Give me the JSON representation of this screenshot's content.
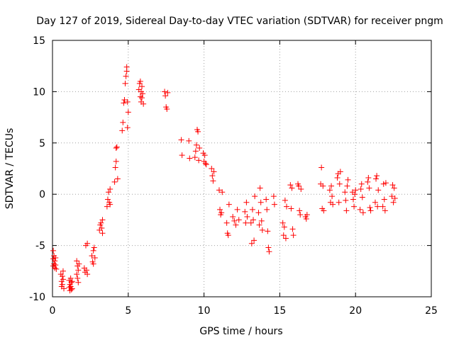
{
  "chart_data": {
    "type": "scatter",
    "title": "Day 127 of 2019, Sidereal Day-to-day VTEC variation (SDTVAR) for receiver pngm",
    "xlabel": "GPS time / hours",
    "ylabel": "SDTVAR / TECUs",
    "xlim": [
      0,
      25
    ],
    "ylim": [
      -10,
      15
    ],
    "xticks": [
      0,
      5,
      10,
      15,
      20,
      25
    ],
    "yticks": [
      -10,
      -5,
      0,
      5,
      10,
      15
    ],
    "xtick_labels": [
      "0",
      "5",
      "10",
      "15",
      "20",
      "25"
    ],
    "ytick_labels": [
      "-10",
      "-5",
      "0",
      "5",
      "10",
      "15"
    ],
    "grid": true,
    "marker": "+",
    "color": "#ff0000",
    "series": [
      {
        "name": "SDTVAR",
        "x": [
          0.05,
          0.05,
          0.05,
          0.1,
          0.1,
          0.15,
          0.15,
          0.2,
          0.2,
          0.25,
          0.55,
          0.6,
          0.6,
          0.65,
          0.65,
          0.7,
          0.7,
          0.75,
          1.1,
          1.1,
          1.15,
          1.15,
          1.2,
          1.2,
          1.25,
          1.25,
          1.3,
          1.3,
          1.6,
          1.6,
          1.65,
          1.65,
          1.7,
          1.7,
          1.75,
          2.1,
          2.15,
          2.2,
          2.25,
          2.3,
          2.3,
          2.6,
          2.65,
          2.7,
          2.7,
          2.75,
          2.8,
          3.1,
          3.15,
          3.2,
          3.25,
          3.3,
          3.3,
          3.6,
          3.65,
          3.7,
          3.75,
          3.8,
          3.8,
          4.1,
          4.15,
          4.2,
          4.2,
          4.25,
          4.3,
          4.6,
          4.65,
          4.7,
          4.75,
          4.8,
          4.85,
          4.9,
          4.9,
          4.95,
          4.95,
          5.0,
          5.7,
          5.75,
          5.8,
          5.85,
          5.9,
          5.95,
          6.0,
          5.8,
          5.85,
          5.9,
          7.4,
          7.45,
          7.5,
          7.55,
          7.6,
          8.5,
          8.55,
          9.0,
          9.05,
          9.4,
          9.45,
          9.5,
          9.55,
          9.6,
          9.65,
          9.7,
          9.95,
          10.0,
          10.05,
          10.1,
          10.15,
          10.5,
          10.55,
          10.6,
          10.65,
          11.0,
          11.05,
          11.1,
          11.15,
          11.2,
          11.5,
          11.55,
          11.6,
          11.65,
          11.9,
          12.0,
          12.1,
          12.2,
          12.3,
          12.7,
          12.75,
          12.8,
          12.85,
          13.2,
          13.25,
          13.3,
          13.35,
          13.1,
          13.15,
          13.6,
          13.65,
          13.7,
          13.75,
          13.8,
          13.85,
          14.1,
          14.15,
          14.2,
          14.25,
          14.3,
          14.6,
          14.65,
          15.2,
          15.25,
          15.3,
          15.35,
          15.4,
          15.45,
          15.7,
          15.75,
          15.8,
          15.85,
          15.9,
          16.2,
          16.25,
          16.3,
          16.35,
          16.4,
          16.7,
          16.75,
          16.8,
          17.7,
          17.75,
          17.8,
          17.85,
          17.9,
          18.3,
          18.35,
          18.4,
          18.45,
          18.5,
          18.8,
          18.85,
          18.9,
          18.95,
          19.0,
          19.3,
          19.35,
          19.4,
          19.45,
          19.5,
          19.8,
          19.85,
          19.9,
          19.95,
          20.0,
          20.3,
          20.35,
          20.4,
          20.45,
          20.5,
          20.8,
          20.85,
          20.9,
          20.95,
          21.0,
          21.3,
          21.35,
          21.4,
          21.45,
          21.5,
          21.8,
          21.85,
          21.9,
          21.95,
          22.0,
          22.4,
          22.45,
          22.5,
          22.55,
          22.6
        ],
        "y": [
          -5.5,
          -6.3,
          -7.0,
          -6.0,
          -6.8,
          -6.5,
          -7.2,
          -6.2,
          -6.9,
          -7.3,
          -7.8,
          -8.5,
          -9.0,
          -8.0,
          -8.8,
          -7.5,
          -8.3,
          -9.2,
          -8.4,
          -9.1,
          -8.8,
          -9.4,
          -8.2,
          -9.0,
          -8.6,
          -9.3,
          -8.5,
          -9.2,
          -6.5,
          -7.8,
          -7.0,
          -8.2,
          -7.4,
          -8.6,
          -6.8,
          -7.2,
          -7.6,
          -5.0,
          -7.4,
          -4.8,
          -7.8,
          -6.0,
          -6.6,
          -5.5,
          -6.8,
          -5.2,
          -6.2,
          -3.5,
          -3.0,
          -2.8,
          -3.3,
          -2.5,
          -3.8,
          -1.2,
          -0.5,
          0.2,
          -0.8,
          0.5,
          -1.0,
          1.2,
          2.6,
          3.2,
          4.5,
          4.6,
          1.5,
          6.2,
          7.0,
          8.9,
          9.2,
          10.8,
          11.5,
          12.0,
          12.4,
          9.0,
          6.5,
          8.0,
          10.2,
          10.8,
          9.5,
          9.0,
          10.5,
          9.8,
          8.8,
          11.0,
          10.0,
          9.4,
          10.0,
          9.6,
          8.5,
          8.3,
          9.9,
          5.3,
          3.8,
          5.2,
          3.5,
          3.6,
          4.2,
          4.8,
          6.3,
          6.1,
          3.3,
          4.5,
          4.0,
          3.2,
          3.8,
          3.0,
          2.9,
          2.5,
          1.8,
          1.3,
          2.2,
          0.4,
          -1.5,
          -2.0,
          -1.8,
          0.2,
          -2.8,
          -3.8,
          -4.0,
          -1.0,
          -2.2,
          -2.6,
          -3.0,
          -1.5,
          -2.5,
          -1.7,
          -2.8,
          -0.8,
          -2.2,
          -1.5,
          -2.5,
          -4.5,
          -0.2,
          -2.8,
          -4.8,
          -1.8,
          -3.0,
          0.6,
          -0.8,
          -2.6,
          -3.5,
          -0.5,
          -1.5,
          -3.6,
          -5.2,
          -5.6,
          -0.2,
          -1.0,
          -2.8,
          -4.0,
          -3.2,
          -0.6,
          -4.3,
          -1.2,
          0.9,
          -1.4,
          0.6,
          -3.4,
          -4.0,
          1.0,
          0.8,
          -1.6,
          -2.0,
          0.5,
          -2.2,
          -2.4,
          -2.0,
          1.0,
          2.6,
          -1.4,
          0.8,
          -1.6,
          0.4,
          -0.8,
          0.8,
          -0.2,
          -1.0,
          1.6,
          2.0,
          -0.8,
          1.0,
          2.2,
          0.2,
          -0.6,
          -1.6,
          0.8,
          1.4,
          0.2,
          -0.5,
          -1.2,
          0.0,
          0.4,
          -1.5,
          0.5,
          1.0,
          -0.3,
          -1.8,
          1.2,
          1.6,
          0.6,
          -1.3,
          -1.6,
          -0.8,
          1.5,
          1.8,
          -1.2,
          0.4,
          -1.2,
          1.0,
          -0.5,
          -1.6,
          1.1,
          -0.2,
          0.9,
          -0.8,
          0.6,
          -0.4
        ]
      }
    ]
  }
}
